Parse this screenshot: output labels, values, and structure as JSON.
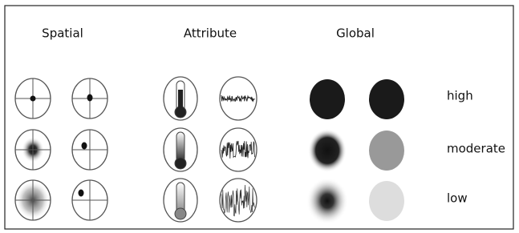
{
  "columns": [
    "Spatial",
    "Attribute",
    "Global"
  ],
  "rows": [
    "high",
    "moderate",
    "low"
  ]
}
